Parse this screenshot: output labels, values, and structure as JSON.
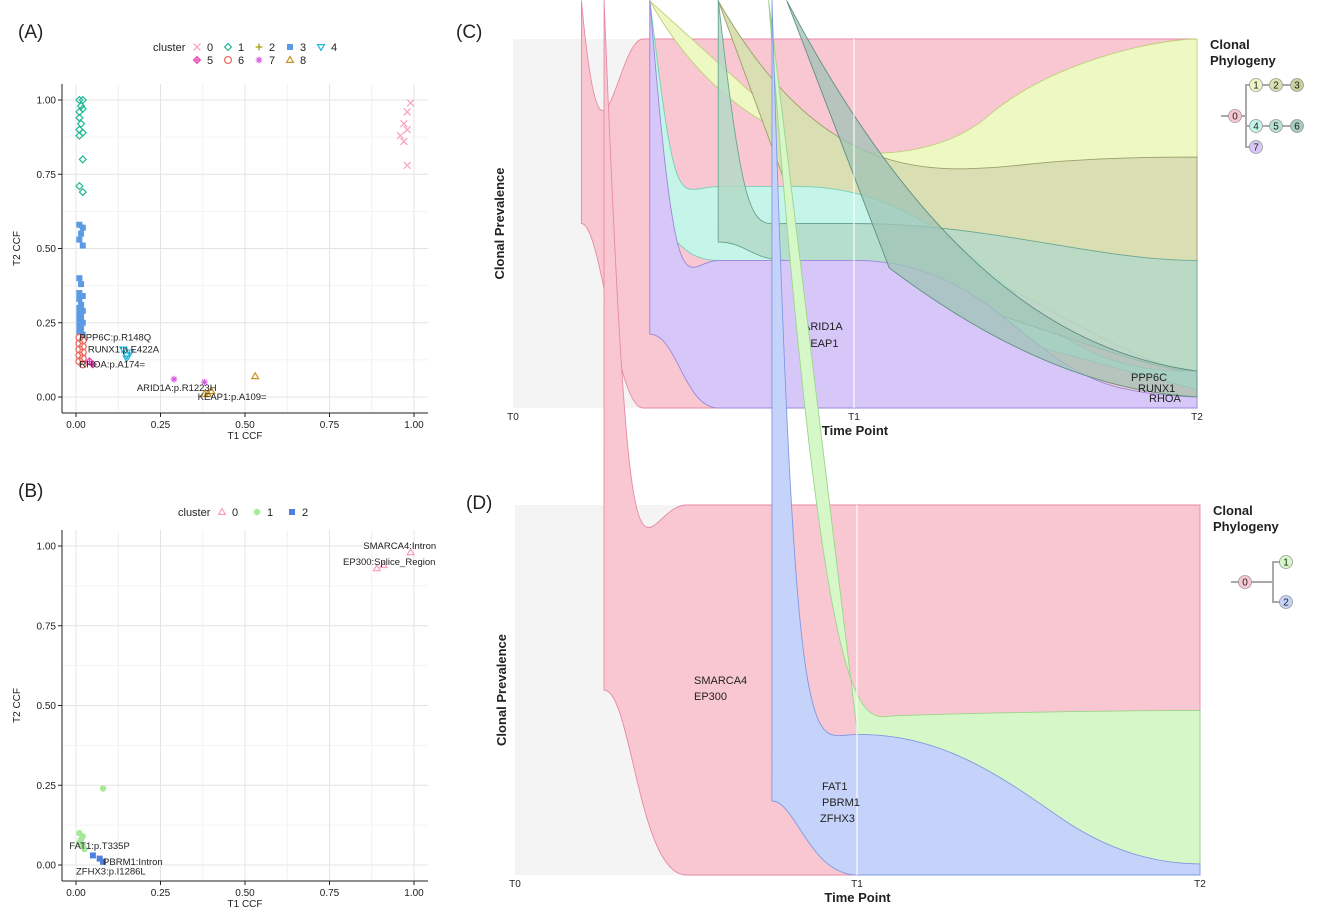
{
  "panels": {
    "A": "(A)",
    "B": "(B)",
    "C": "(C)",
    "D": "(D)"
  },
  "chart_data": [
    {
      "id": "A",
      "type": "scatter",
      "xlabel": "T1 CCF",
      "ylabel": "T2 CCF",
      "xlim": [
        0,
        1
      ],
      "ylim": [
        0,
        1
      ],
      "xticks": [
        "0.00",
        "0.25",
        "0.50",
        "0.75",
        "1.00"
      ],
      "yticks": [
        "0.00",
        "0.25",
        "0.50",
        "0.75",
        "1.00"
      ],
      "grid": true,
      "legend_title": "cluster",
      "legend_position": "top",
      "series": [
        {
          "name": "0",
          "color": "#f8a0b8",
          "marker": "x",
          "points": [
            [
              0.97,
              0.92
            ],
            [
              0.98,
              0.96
            ],
            [
              0.99,
              0.99
            ],
            [
              0.96,
              0.88
            ],
            [
              0.98,
              0.9
            ],
            [
              0.97,
              0.86
            ],
            [
              0.98,
              0.78
            ]
          ]
        },
        {
          "name": "1",
          "color": "#1fb896",
          "marker": "diamond",
          "points": [
            [
              0.01,
              1.0
            ],
            [
              0.02,
              1.0
            ],
            [
              0.015,
              0.98
            ],
            [
              0.01,
              0.96
            ],
            [
              0.02,
              0.97
            ],
            [
              0.01,
              0.94
            ],
            [
              0.015,
              0.92
            ],
            [
              0.01,
              0.9
            ],
            [
              0.02,
              0.89
            ],
            [
              0.01,
              0.88
            ],
            [
              0.02,
              0.8
            ],
            [
              0.01,
              0.71
            ],
            [
              0.02,
              0.69
            ]
          ]
        },
        {
          "name": "2",
          "color": "#a2a000",
          "marker": "plus",
          "points": [
            [
              0.02,
              0.57
            ]
          ]
        },
        {
          "name": "3",
          "color": "#5b9be6",
          "marker": "square",
          "points": [
            [
              0.01,
              0.58
            ],
            [
              0.02,
              0.57
            ],
            [
              0.015,
              0.55
            ],
            [
              0.01,
              0.53
            ],
            [
              0.02,
              0.51
            ],
            [
              0.01,
              0.4
            ],
            [
              0.015,
              0.38
            ],
            [
              0.01,
              0.35
            ],
            [
              0.02,
              0.34
            ],
            [
              0.01,
              0.33
            ],
            [
              0.015,
              0.31
            ],
            [
              0.01,
              0.3
            ],
            [
              0.02,
              0.29
            ],
            [
              0.01,
              0.28
            ],
            [
              0.015,
              0.27
            ],
            [
              0.01,
              0.26
            ],
            [
              0.02,
              0.25
            ],
            [
              0.01,
              0.24
            ],
            [
              0.015,
              0.23
            ],
            [
              0.01,
              0.22
            ],
            [
              0.02,
              0.21
            ]
          ]
        },
        {
          "name": "4",
          "color": "#1fb4d8",
          "marker": "triangle-down",
          "points": [
            [
              0.14,
              0.16
            ],
            [
              0.15,
              0.14
            ],
            [
              0.16,
              0.15
            ],
            [
              0.15,
              0.13
            ]
          ]
        },
        {
          "name": "5",
          "color": "#e64bb4",
          "marker": "diamond-plus",
          "points": [
            [
              0.04,
              0.12
            ],
            [
              0.05,
              0.11
            ]
          ]
        },
        {
          "name": "6",
          "color": "#ee6a5f",
          "marker": "circle-open",
          "points": [
            [
              0.01,
              0.2
            ],
            [
              0.02,
              0.19
            ],
            [
              0.01,
              0.18
            ],
            [
              0.02,
              0.17
            ],
            [
              0.01,
              0.16
            ],
            [
              0.02,
              0.15
            ],
            [
              0.01,
              0.14
            ],
            [
              0.02,
              0.13
            ],
            [
              0.01,
              0.12
            ],
            [
              0.02,
              0.11
            ]
          ]
        },
        {
          "name": "7",
          "color": "#d25ee0",
          "marker": "asterisk",
          "points": [
            [
              0.29,
              0.06
            ],
            [
              0.38,
              0.05
            ]
          ]
        },
        {
          "name": "8",
          "color": "#c8921e",
          "marker": "triangle-up",
          "points": [
            [
              0.53,
              0.07
            ],
            [
              0.38,
              0.01
            ],
            [
              0.39,
              0.01
            ],
            [
              0.4,
              0.02
            ]
          ]
        }
      ],
      "annotations": [
        {
          "text": "PPP6C:p.R148Q",
          "x": 0.01,
          "y": 0.2
        },
        {
          "text": "RUNX1:p.E422A",
          "x": 0.035,
          "y": 0.16
        },
        {
          "text": "RHOA:p.A174=",
          "x": 0.01,
          "y": 0.11
        },
        {
          "text": "ARID1A:p.R1223H",
          "x": 0.18,
          "y": 0.03
        },
        {
          "text": "KEAP1:p.A109=",
          "x": 0.36,
          "y": 0.0
        }
      ]
    },
    {
      "id": "B",
      "type": "scatter",
      "xlabel": "T1 CCF",
      "ylabel": "T2 CCF",
      "xlim": [
        0,
        1
      ],
      "ylim": [
        0,
        1
      ],
      "xticks": [
        "0.00",
        "0.25",
        "0.50",
        "0.75",
        "1.00"
      ],
      "yticks": [
        "0.00",
        "0.25",
        "0.50",
        "0.75",
        "1.00"
      ],
      "grid": true,
      "legend_title": "cluster",
      "legend_position": "top",
      "series": [
        {
          "name": "0",
          "color": "#f8a0b8",
          "marker": "triangle-up",
          "points": [
            [
              0.89,
              0.93
            ],
            [
              0.91,
              0.94
            ],
            [
              0.99,
              0.98
            ]
          ]
        },
        {
          "name": "1",
          "color": "#a8e89a",
          "marker": "circle",
          "points": [
            [
              0.08,
              0.24
            ],
            [
              0.01,
              0.1
            ],
            [
              0.02,
              0.09
            ],
            [
              0.015,
              0.08
            ],
            [
              0.01,
              0.07
            ],
            [
              0.02,
              0.06
            ],
            [
              0.025,
              0.05
            ]
          ]
        },
        {
          "name": "2",
          "color": "#4f7fe0",
          "marker": "square",
          "points": [
            [
              0.05,
              0.03
            ],
            [
              0.07,
              0.02
            ],
            [
              0.08,
              0.01
            ]
          ]
        }
      ],
      "annotations": [
        {
          "text": "SMARCA4:Intron",
          "x": 0.85,
          "y": 1.0
        },
        {
          "text": "EP300:Splice_Region",
          "x": 0.79,
          "y": 0.95
        },
        {
          "text": "FAT1:p.T335P",
          "x": -0.02,
          "y": 0.06
        },
        {
          "text": "PBRM1:Intron",
          "x": 0.08,
          "y": 0.01
        },
        {
          "text": "ZFHX3:p.I1286L",
          "x": 0.0,
          "y": -0.02
        }
      ]
    },
    {
      "id": "C",
      "type": "area",
      "title": "",
      "xlabel": "Time Point",
      "ylabel": "Clonal Prevalence",
      "x": [
        "T0",
        "T1",
        "T2"
      ],
      "phylogeny_title": [
        "Clonal",
        "Phylogeny"
      ],
      "phylogeny": {
        "root": "0",
        "nodes": [
          {
            "id": "0",
            "color": "#f9c7d2"
          },
          {
            "id": "1",
            "color": "#eef4c4"
          },
          {
            "id": "2",
            "color": "#dbe0b0"
          },
          {
            "id": "3",
            "color": "#c8cf9c"
          },
          {
            "id": "4",
            "color": "#c4f5e8"
          },
          {
            "id": "5",
            "color": "#b7e0d4"
          },
          {
            "id": "6",
            "color": "#a6cabf"
          },
          {
            "id": "7",
            "color": "#d8c8f6"
          }
        ],
        "edges": [
          [
            "0",
            "1"
          ],
          [
            "1",
            "2"
          ],
          [
            "2",
            "3"
          ],
          [
            "0",
            "4"
          ],
          [
            "4",
            "5"
          ],
          [
            "5",
            "6"
          ],
          [
            "0",
            "7"
          ]
        ]
      },
      "series": [
        {
          "name": "0",
          "color": "#f9c7d2",
          "values": [
            0.0,
            1.0,
            1.0
          ]
        },
        {
          "name": "1",
          "color": "#eef4c4",
          "values": [
            0.0,
            0.01,
            0.78
          ]
        },
        {
          "name": "4",
          "color": "#c4f5e8",
          "values": [
            0.0,
            0.41,
            0.05
          ]
        },
        {
          "name": "7",
          "color": "#d8c8f6",
          "values": [
            0.0,
            0.4,
            0.05
          ]
        }
      ],
      "annotations": [
        {
          "text": "ARID1A",
          "series": "7"
        },
        {
          "text": "KEAP1",
          "series": "7"
        },
        {
          "text": "PPP6C",
          "series": "6"
        },
        {
          "text": "RUNX1",
          "series": "6"
        },
        {
          "text": "RHOA",
          "series": "6"
        }
      ]
    },
    {
      "id": "D",
      "type": "area",
      "title": "",
      "xlabel": "Time Point",
      "ylabel": "Clonal Prevalence",
      "x": [
        "T0",
        "T1",
        "T2"
      ],
      "phylogeny_title": [
        "Clonal",
        "Phylogeny"
      ],
      "phylogeny": {
        "root": "0",
        "nodes": [
          {
            "id": "0",
            "color": "#f9c7d2"
          },
          {
            "id": "1",
            "color": "#d6f7c8"
          },
          {
            "id": "2",
            "color": "#c5d3fa"
          }
        ],
        "edges": [
          [
            "0",
            "1"
          ],
          [
            "0",
            "2"
          ]
        ]
      },
      "series": [
        {
          "name": "0",
          "color": "#f9c7d2",
          "values": [
            0.0,
            1.0,
            1.0
          ]
        },
        {
          "name": "1",
          "color": "#d6f7c8",
          "values": [
            0.0,
            0.04,
            0.45
          ]
        },
        {
          "name": "2",
          "color": "#c5d3fa",
          "values": [
            0.0,
            0.39,
            0.03
          ]
        }
      ],
      "annotations": [
        {
          "text": "SMARCA4",
          "series": "0"
        },
        {
          "text": "EP300",
          "series": "0"
        },
        {
          "text": "FAT1",
          "series": "2"
        },
        {
          "text": "PBRM1",
          "series": "2"
        },
        {
          "text": "ZFHX3",
          "series": "2"
        }
      ]
    }
  ]
}
